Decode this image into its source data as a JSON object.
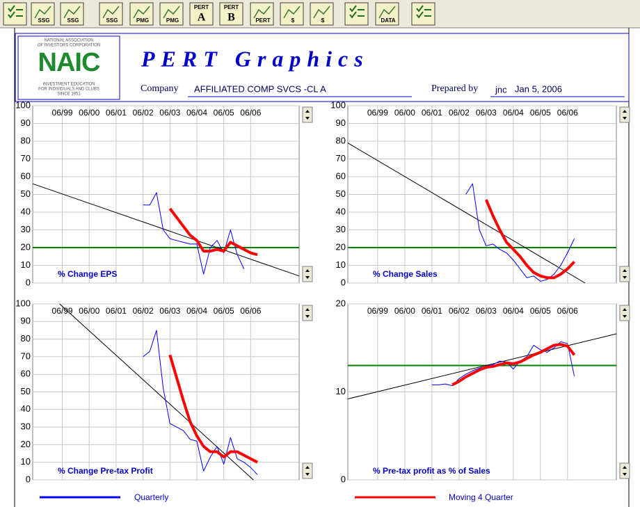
{
  "toolbar": [
    "SSG",
    "SSG",
    "SSG",
    "PMG",
    "PMG",
    "PERT",
    "A",
    "PERT",
    "B",
    "PERT",
    "$",
    "$",
    "DATA"
  ],
  "header": {
    "logo": [
      "NATIONAL ASSOCIATION",
      "OF INVESTORS CORPORATION",
      "NAIC",
      "INVESTMENT EDUCATION",
      "FOR INDIVIDUALS AND CLUBS",
      "SINCE 1951"
    ],
    "title": "PERT Graphics",
    "company_label": "Company",
    "company": "AFFILIATED COMP SVCS -CL A",
    "prepared_label": "Prepared by",
    "prepared_by": "jnc",
    "date": "Jan 5, 2006"
  },
  "chart_data": [
    {
      "type": "line",
      "title": "% Change EPS",
      "grid": true,
      "xlim": [
        1998.4,
        2008.3
      ],
      "xticks": [
        {
          "value": 1999.5,
          "label": "06/99"
        },
        {
          "value": 2000.5,
          "label": "06/00"
        },
        {
          "value": 2001.5,
          "label": "06/01"
        },
        {
          "value": 2002.5,
          "label": "06/02"
        },
        {
          "value": 2003.5,
          "label": "06/03"
        },
        {
          "value": 2004.5,
          "label": "06/04"
        },
        {
          "value": 2005.5,
          "label": "06/05"
        },
        {
          "value": 2006.5,
          "label": "06/06"
        }
      ],
      "ylim": [
        0,
        100
      ],
      "yticks": [
        0,
        10,
        20,
        30,
        40,
        50,
        60,
        70,
        80,
        90,
        100
      ],
      "target": {
        "value": 20,
        "color": "#008000"
      },
      "trend": {
        "x": [
          1998.4,
          2008.3
        ],
        "values": [
          56,
          4
        ],
        "color": "#000000"
      },
      "series": [
        {
          "color": "#0000ff",
          "x": [
            2002.5,
            2002.75,
            2003,
            2003.25,
            2003.5,
            2003.75,
            2004,
            2004.25,
            2004.5,
            2004.75,
            2005,
            2005.25,
            2005.5,
            2005.75,
            2006,
            2006.25
          ],
          "values": [
            44,
            44,
            51,
            30,
            25,
            24,
            23,
            22,
            22,
            5,
            20,
            24,
            17,
            30,
            16,
            8
          ]
        },
        {
          "color": "#ff0000",
          "x": [
            2003.5,
            2003.75,
            2004,
            2004.25,
            2004.5,
            2004.75,
            2005,
            2005.25,
            2005.5,
            2005.75,
            2006,
            2006.25,
            2006.5,
            2006.75
          ],
          "values": [
            42,
            37,
            32,
            27,
            24,
            18,
            18,
            19,
            18,
            23,
            21,
            19,
            17,
            16
          ]
        }
      ]
    },
    {
      "type": "line",
      "title": "% Change Sales",
      "grid": true,
      "xlim": [
        1998.4,
        2008.3
      ],
      "xticks": [
        {
          "value": 1999.5,
          "label": "06/99"
        },
        {
          "value": 2000.5,
          "label": "06/00"
        },
        {
          "value": 2001.5,
          "label": "06/01"
        },
        {
          "value": 2002.5,
          "label": "06/02"
        },
        {
          "value": 2003.5,
          "label": "06/03"
        },
        {
          "value": 2004.5,
          "label": "06/04"
        },
        {
          "value": 2005.5,
          "label": "06/05"
        },
        {
          "value": 2006.5,
          "label": "06/06"
        }
      ],
      "ylim": [
        0,
        100
      ],
      "yticks": [
        0,
        10,
        20,
        30,
        40,
        50,
        60,
        70,
        80,
        90,
        100
      ],
      "target": {
        "value": 20,
        "color": "#008000"
      },
      "trend": {
        "x": [
          1998.4,
          2007.15
        ],
        "values": [
          79,
          0
        ],
        "color": "#000000"
      },
      "series": [
        {
          "color": "#0000ff",
          "x": [
            2002.75,
            2003,
            2003.25,
            2003.5,
            2003.75,
            2004,
            2004.25,
            2004.5,
            2004.75,
            2005,
            2005.25,
            2005.5,
            2005.75,
            2006,
            2006.25,
            2006.5,
            2006.75
          ],
          "values": [
            50,
            56,
            30,
            21,
            22,
            19,
            17,
            13,
            8,
            3,
            4,
            1,
            2,
            5,
            10,
            17,
            25
          ]
        },
        {
          "color": "#ff0000",
          "x": [
            2003.5,
            2003.75,
            2004,
            2004.25,
            2004.5,
            2004.75,
            2005,
            2005.25,
            2005.5,
            2005.75,
            2006,
            2006.25,
            2006.5,
            2006.75
          ],
          "values": [
            47,
            38,
            30,
            23,
            19,
            15,
            10,
            6,
            4,
            3,
            3,
            5,
            8,
            12
          ]
        }
      ]
    },
    {
      "type": "line",
      "title": "% Change Pre-tax Profit",
      "grid": true,
      "xlim": [
        1998.4,
        2008.3
      ],
      "xticks": [
        {
          "value": 1999.5,
          "label": "06/99"
        },
        {
          "value": 2000.5,
          "label": "06/00"
        },
        {
          "value": 2001.5,
          "label": "06/01"
        },
        {
          "value": 2002.5,
          "label": "06/02"
        },
        {
          "value": 2003.5,
          "label": "06/03"
        },
        {
          "value": 2004.5,
          "label": "06/04"
        },
        {
          "value": 2005.5,
          "label": "06/05"
        },
        {
          "value": 2006.5,
          "label": "06/06"
        }
      ],
      "ylim": [
        0,
        100
      ],
      "yticks": [
        0,
        10,
        20,
        30,
        40,
        50,
        60,
        70,
        80,
        90,
        100
      ],
      "trend": {
        "x": [
          1999.4,
          2006.6
        ],
        "values": [
          100,
          0
        ],
        "color": "#000000"
      },
      "series": [
        {
          "color": "#0000ff",
          "x": [
            2002.5,
            2002.75,
            2003,
            2003.25,
            2003.5,
            2003.75,
            2004,
            2004.25,
            2004.5,
            2004.75,
            2005,
            2005.25,
            2005.5,
            2005.75,
            2006,
            2006.25,
            2006.5,
            2006.75
          ],
          "values": [
            70,
            73,
            85,
            52,
            32,
            30,
            28,
            23,
            22,
            5,
            13,
            19,
            9,
            24,
            12,
            10,
            7,
            3
          ]
        },
        {
          "color": "#ff0000",
          "x": [
            2003.5,
            2003.75,
            2004,
            2004.25,
            2004.5,
            2004.75,
            2005,
            2005.25,
            2005.5,
            2005.75,
            2006,
            2006.25,
            2006.5,
            2006.75
          ],
          "values": [
            71,
            58,
            45,
            33,
            25,
            19,
            16,
            16,
            13,
            16,
            16,
            14,
            12,
            10
          ]
        }
      ]
    },
    {
      "type": "line",
      "title": "% Pre-tax profit as % of Sales",
      "grid": true,
      "xlim": [
        1998.4,
        2008.3
      ],
      "xticks": [
        {
          "value": 1999.5,
          "label": "06/99"
        },
        {
          "value": 2000.5,
          "label": "06/00"
        },
        {
          "value": 2001.5,
          "label": "06/01"
        },
        {
          "value": 2002.5,
          "label": "06/02"
        },
        {
          "value": 2003.5,
          "label": "06/03"
        },
        {
          "value": 2004.5,
          "label": "06/04"
        },
        {
          "value": 2005.5,
          "label": "06/05"
        },
        {
          "value": 2006.5,
          "label": "06/06"
        }
      ],
      "ylim": [
        0,
        20
      ],
      "yticks": [
        0,
        10,
        20
      ],
      "target": {
        "value": 13,
        "color": "#008000"
      },
      "trend": {
        "x": [
          1998.4,
          2008.3
        ],
        "values": [
          9.2,
          16.6
        ],
        "color": "#000000"
      },
      "series": [
        {
          "color": "#0000ff",
          "x": [
            2001.5,
            2001.75,
            2002,
            2002.25,
            2002.5,
            2002.75,
            2003,
            2003.25,
            2003.5,
            2003.75,
            2004,
            2004.25,
            2004.5,
            2004.75,
            2005,
            2005.25,
            2005.5,
            2005.75,
            2006,
            2006.25,
            2006.5,
            2006.75
          ],
          "values": [
            10.8,
            10.8,
            10.9,
            10.7,
            11.5,
            12,
            12.4,
            12.7,
            12.9,
            13.1,
            13.5,
            13.4,
            12.6,
            13.5,
            14,
            15.3,
            14.8,
            14.5,
            15,
            15.7,
            15.5,
            11.8
          ]
        },
        {
          "color": "#ff0000",
          "x": [
            2002.25,
            2002.5,
            2002.75,
            2003,
            2003.25,
            2003.5,
            2003.75,
            2004,
            2004.25,
            2004.5,
            2004.75,
            2005,
            2005.25,
            2005.5,
            2005.75,
            2006,
            2006.25,
            2006.5,
            2006.75
          ],
          "values": [
            10.8,
            11.2,
            11.7,
            12.1,
            12.5,
            12.8,
            12.9,
            13.1,
            13.3,
            13.2,
            13.4,
            13.8,
            14.2,
            14.5,
            14.9,
            15.3,
            15.4,
            15.2,
            14.2
          ]
        }
      ]
    }
  ],
  "legend": [
    {
      "name": "Quarterly",
      "color": "#0000ff"
    },
    {
      "name": "Moving 4 Quarter",
      "color": "#ff0000"
    }
  ]
}
